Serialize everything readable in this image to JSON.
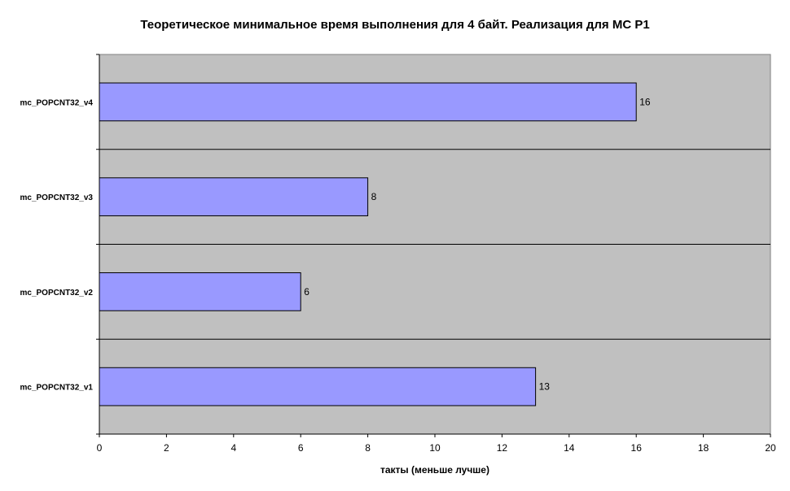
{
  "chart_data": {
    "type": "bar",
    "orientation": "horizontal",
    "title": "Теоретическое минимальное время выполнения для 4 байт. Реализация для МС P1",
    "xlabel": "такты (меньше лучше)",
    "ylabel": "",
    "categories": [
      "mc_POPCNT32_v1",
      "mc_POPCNT32_v2",
      "mc_POPCNT32_v3",
      "mc_POPCNT32_v4"
    ],
    "values": [
      13,
      6,
      8,
      16
    ],
    "xlim": [
      0,
      20
    ],
    "xticks": [
      0,
      2,
      4,
      6,
      8,
      10,
      12,
      14,
      16,
      18,
      20
    ],
    "grid": "horizontal",
    "legend": "none",
    "colors": {
      "bar_fill": "#9999FF",
      "bar_stroke": "#000000",
      "plot_background": "#C0C0C0"
    }
  }
}
